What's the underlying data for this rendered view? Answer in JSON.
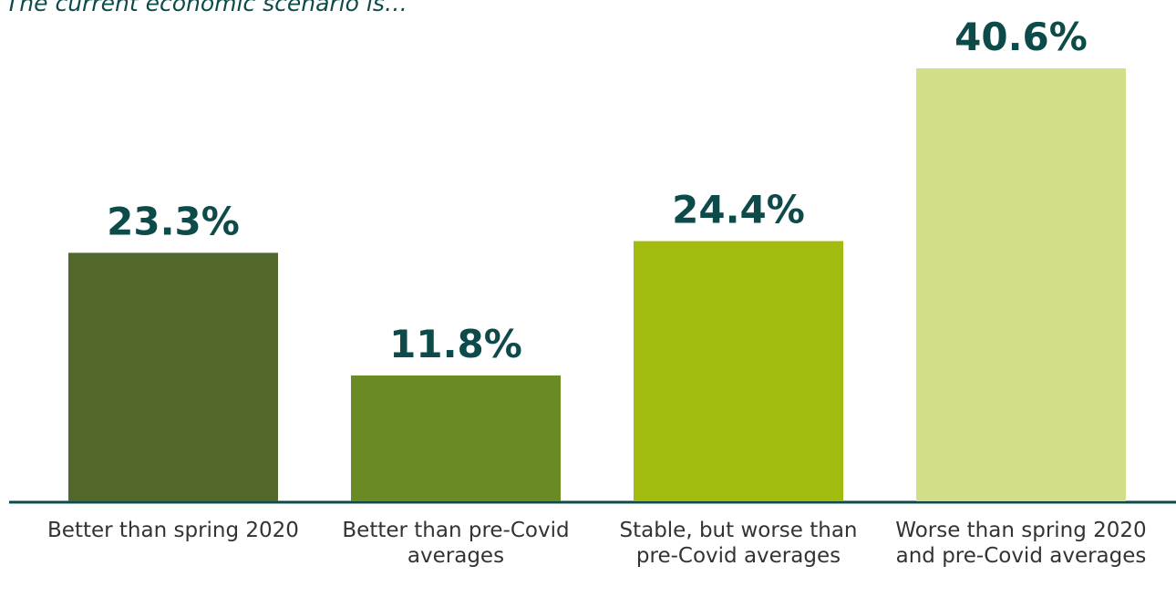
{
  "chart_data": {
    "type": "bar",
    "title": "The current economic scenario is…",
    "categories": [
      "Better than spring 2020",
      "Better than pre-Covid averages",
      "Stable, but worse than pre-Covid averages",
      "Worse than spring 2020 and pre-Covid averages"
    ],
    "values": [
      23.3,
      11.8,
      24.4,
      40.6
    ],
    "value_labels": [
      "23.3%",
      "11.8%",
      "24.4%",
      "40.6%"
    ],
    "colors": [
      "#52672a",
      "#6a8a23",
      "#a3bb0e",
      "#d3de89"
    ]
  }
}
